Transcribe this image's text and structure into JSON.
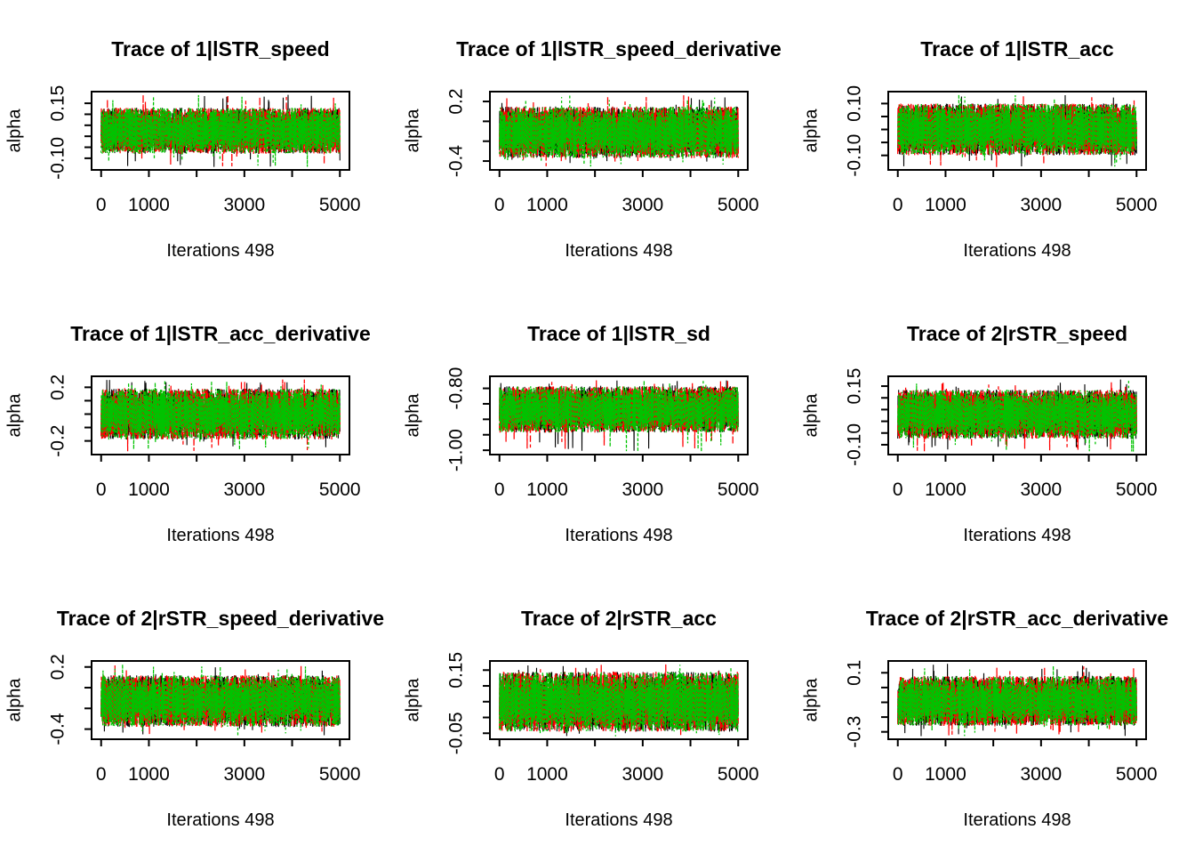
{
  "figure": {
    "background": "#ffffff",
    "foreground": "#000000",
    "grid_rows": 3,
    "grid_cols": 3,
    "xlabel": "Iterations 498",
    "ylabel": "alpha",
    "legend": "none",
    "chain_colors": {
      "chain-1": "#000000",
      "chain-2": "#ff0000",
      "chain-3": "#00c300"
    },
    "chain_linetypes": {
      "chain-1": "solid",
      "chain-2": "dashed",
      "chain-3": "dotted"
    }
  },
  "chart_data": [
    {
      "type": "line",
      "title": "Trace of 1|lSTR_speed",
      "xlabel": "Iterations 498",
      "ylabel": "alpha",
      "x_range": [
        0,
        5000
      ],
      "x_ticks": [
        0,
        1000,
        2000,
        3000,
        4000,
        5000
      ],
      "x_tick_labels": [
        "0",
        "1000",
        "",
        "3000",
        "",
        "5000"
      ],
      "ylim": [
        -0.153,
        0.203
      ],
      "y_ticks": [
        -0.1,
        -0.05,
        0.0,
        0.05,
        0.1,
        0.15
      ],
      "y_tick_labels": [
        "-0.10",
        "",
        "",
        "",
        "",
        "0.15"
      ],
      "grid": false,
      "series": [
        {
          "name": "chain-1",
          "color": "#000000",
          "linetype": "solid",
          "center": 0.025,
          "spread": 0.105,
          "min": -0.14,
          "max": 0.19
        },
        {
          "name": "chain-2",
          "color": "#ff0000",
          "linetype": "dashed",
          "center": 0.025,
          "spread": 0.105,
          "min": -0.14,
          "max": 0.19
        },
        {
          "name": "chain-3",
          "color": "#00c300",
          "linetype": "dotted",
          "center": 0.025,
          "spread": 0.105,
          "min": -0.14,
          "max": 0.19
        }
      ]
    },
    {
      "type": "line",
      "title": "Trace of 1|lSTR_speed_derivative",
      "xlabel": "Iterations 498",
      "ylabel": "alpha",
      "x_range": [
        0,
        5000
      ],
      "x_ticks": [
        0,
        1000,
        2000,
        3000,
        4000,
        5000
      ],
      "x_tick_labels": [
        "0",
        "1000",
        "",
        "3000",
        "",
        "5000"
      ],
      "ylim": [
        -0.489,
        0.299
      ],
      "y_ticks": [
        -0.4,
        -0.2,
        0.0,
        0.2
      ],
      "y_tick_labels": [
        "-0.4",
        "",
        "",
        "0.2"
      ],
      "grid": false,
      "series": [
        {
          "name": "chain-1",
          "color": "#000000",
          "linetype": "solid",
          "center": -0.11,
          "spread": 0.26,
          "min": -0.46,
          "max": 0.27
        },
        {
          "name": "chain-2",
          "color": "#ff0000",
          "linetype": "dashed",
          "center": -0.11,
          "spread": 0.26,
          "min": -0.46,
          "max": 0.27
        },
        {
          "name": "chain-3",
          "color": "#00c300",
          "linetype": "dotted",
          "center": -0.11,
          "spread": 0.26,
          "min": -0.46,
          "max": 0.27
        }
      ]
    },
    {
      "type": "line",
      "title": "Trace of 1|lSTR_acc",
      "xlabel": "Iterations 498",
      "ylabel": "alpha",
      "x_range": [
        0,
        5000
      ],
      "x_ticks": [
        0,
        1000,
        2000,
        3000,
        4000,
        5000
      ],
      "x_tick_labels": [
        "0",
        "1000",
        "",
        "3000",
        "",
        "5000"
      ],
      "ylim": [
        -0.156,
        0.146
      ],
      "y_ticks": [
        -0.1,
        -0.05,
        0.0,
        0.05,
        0.1
      ],
      "y_tick_labels": [
        "-0.10",
        "",
        "",
        "",
        "0.10"
      ],
      "grid": false,
      "series": [
        {
          "name": "chain-1",
          "color": "#000000",
          "linetype": "solid",
          "center": 0.0,
          "spread": 0.1,
          "min": -0.145,
          "max": 0.135
        },
        {
          "name": "chain-2",
          "color": "#ff0000",
          "linetype": "dashed",
          "center": 0.0,
          "spread": 0.1,
          "min": -0.145,
          "max": 0.135
        },
        {
          "name": "chain-3",
          "color": "#00c300",
          "linetype": "dotted",
          "center": 0.0,
          "spread": 0.1,
          "min": -0.145,
          "max": 0.135
        }
      ]
    },
    {
      "type": "line",
      "title": "Trace of 1|lSTR_acc_derivative",
      "xlabel": "Iterations 498",
      "ylabel": "alpha",
      "x_range": [
        0,
        5000
      ],
      "x_ticks": [
        0,
        1000,
        2000,
        3000,
        4000,
        5000
      ],
      "x_tick_labels": [
        "0",
        "1000",
        "",
        "3000",
        "",
        "5000"
      ],
      "ylim": [
        -0.302,
        0.282
      ],
      "y_ticks": [
        -0.2,
        -0.1,
        0.0,
        0.1,
        0.2
      ],
      "y_tick_labels": [
        "-0.2",
        "",
        "",
        "",
        "0.2"
      ],
      "grid": false,
      "series": [
        {
          "name": "chain-1",
          "color": "#000000",
          "linetype": "solid",
          "center": 0.0,
          "spread": 0.19,
          "min": -0.28,
          "max": 0.26
        },
        {
          "name": "chain-2",
          "color": "#ff0000",
          "linetype": "dashed",
          "center": 0.0,
          "spread": 0.19,
          "min": -0.28,
          "max": 0.26
        },
        {
          "name": "chain-3",
          "color": "#00c300",
          "linetype": "dotted",
          "center": 0.0,
          "spread": 0.19,
          "min": -0.28,
          "max": 0.26
        }
      ]
    },
    {
      "type": "line",
      "title": "Trace of 1|lSTR_sd",
      "xlabel": "Iterations 498",
      "ylabel": "alpha",
      "x_range": [
        0,
        5000
      ],
      "x_ticks": [
        0,
        1000,
        2000,
        3000,
        4000,
        5000
      ],
      "x_tick_labels": [
        "0",
        "1000",
        "",
        "3000",
        "",
        "5000"
      ],
      "ylim": [
        -1.014,
        -0.761
      ],
      "y_ticks": [
        -1.0,
        -0.95,
        -0.9,
        -0.85,
        -0.8
      ],
      "y_tick_labels": [
        "-1.00",
        "",
        "",
        "",
        "-0.80"
      ],
      "grid": false,
      "series": [
        {
          "name": "chain-1",
          "color": "#000000",
          "linetype": "solid",
          "center": -0.868,
          "spread": 0.075,
          "min": -1.005,
          "max": -0.77
        },
        {
          "name": "chain-2",
          "color": "#ff0000",
          "linetype": "dashed",
          "center": -0.868,
          "spread": 0.075,
          "min": -1.005,
          "max": -0.77
        },
        {
          "name": "chain-3",
          "color": "#00c300",
          "linetype": "dotted",
          "center": -0.868,
          "spread": 0.075,
          "min": -1.005,
          "max": -0.77
        }
      ]
    },
    {
      "type": "line",
      "title": "Trace of 2|rSTR_speed",
      "xlabel": "Iterations 498",
      "ylabel": "alpha",
      "x_range": [
        0,
        5000
      ],
      "x_ticks": [
        0,
        1000,
        2000,
        3000,
        4000,
        5000
      ],
      "x_tick_labels": [
        "0",
        "1000",
        "",
        "3000",
        "",
        "5000"
      ],
      "ylim": [
        -0.142,
        0.192
      ],
      "y_ticks": [
        -0.1,
        -0.05,
        0.0,
        0.05,
        0.1,
        0.15
      ],
      "y_tick_labels": [
        "-0.10",
        "",
        "",
        "",
        "",
        "0.15"
      ],
      "grid": false,
      "series": [
        {
          "name": "chain-1",
          "color": "#000000",
          "linetype": "solid",
          "center": 0.03,
          "spread": 0.105,
          "min": -0.13,
          "max": 0.18
        },
        {
          "name": "chain-2",
          "color": "#ff0000",
          "linetype": "dashed",
          "center": 0.03,
          "spread": 0.105,
          "min": -0.13,
          "max": 0.18
        },
        {
          "name": "chain-3",
          "color": "#00c300",
          "linetype": "dotted",
          "center": 0.03,
          "spread": 0.105,
          "min": -0.13,
          "max": 0.18
        }
      ]
    },
    {
      "type": "line",
      "title": "Trace of 2|rSTR_speed_derivative",
      "xlabel": "Iterations 498",
      "ylabel": "alpha",
      "x_range": [
        0,
        5000
      ],
      "x_ticks": [
        0,
        1000,
        2000,
        3000,
        4000,
        5000
      ],
      "x_tick_labels": [
        "0",
        "1000",
        "",
        "3000",
        "",
        "5000"
      ],
      "ylim": [
        -0.498,
        0.258
      ],
      "y_ticks": [
        -0.4,
        -0.2,
        0.0,
        0.2
      ],
      "y_tick_labels": [
        "-0.4",
        "",
        "",
        "0.2"
      ],
      "grid": false,
      "series": [
        {
          "name": "chain-1",
          "color": "#000000",
          "linetype": "solid",
          "center": -0.13,
          "spread": 0.25,
          "min": -0.47,
          "max": 0.23
        },
        {
          "name": "chain-2",
          "color": "#ff0000",
          "linetype": "dashed",
          "center": -0.13,
          "spread": 0.25,
          "min": -0.47,
          "max": 0.23
        },
        {
          "name": "chain-3",
          "color": "#00c300",
          "linetype": "dotted",
          "center": -0.13,
          "spread": 0.25,
          "min": -0.47,
          "max": 0.23
        }
      ]
    },
    {
      "type": "line",
      "title": "Trace of 2|rSTR_acc",
      "xlabel": "Iterations 498",
      "ylabel": "alpha",
      "x_range": [
        0,
        5000
      ],
      "x_ticks": [
        0,
        1000,
        2000,
        3000,
        4000,
        5000
      ],
      "x_tick_labels": [
        "0",
        "1000",
        "",
        "3000",
        "",
        "5000"
      ],
      "ylim": [
        -0.069,
        0.179
      ],
      "y_ticks": [
        -0.05,
        0.0,
        0.05,
        0.1,
        0.15
      ],
      "y_tick_labels": [
        "-0.05",
        "",
        "",
        "",
        "0.15"
      ],
      "grid": false,
      "series": [
        {
          "name": "chain-1",
          "color": "#000000",
          "linetype": "solid",
          "center": 0.05,
          "spread": 0.095,
          "min": -0.06,
          "max": 0.17
        },
        {
          "name": "chain-2",
          "color": "#ff0000",
          "linetype": "dashed",
          "center": 0.05,
          "spread": 0.095,
          "min": -0.06,
          "max": 0.17
        },
        {
          "name": "chain-3",
          "color": "#00c300",
          "linetype": "dotted",
          "center": 0.05,
          "spread": 0.095,
          "min": -0.06,
          "max": 0.17
        }
      ]
    },
    {
      "type": "line",
      "title": "Trace of 2|rSTR_acc_derivative",
      "xlabel": "Iterations 498",
      "ylabel": "alpha",
      "x_range": [
        0,
        5000
      ],
      "x_ticks": [
        0,
        1000,
        2000,
        3000,
        4000,
        5000
      ],
      "x_tick_labels": [
        "0",
        "1000",
        "",
        "3000",
        "",
        "5000"
      ],
      "ylim": [
        -0.35,
        0.18
      ],
      "y_ticks": [
        -0.3,
        -0.2,
        -0.1,
        0.0,
        0.1
      ],
      "y_tick_labels": [
        "-0.3",
        "",
        "",
        "",
        "0.1"
      ],
      "grid": false,
      "series": [
        {
          "name": "chain-1",
          "color": "#000000",
          "linetype": "solid",
          "center": -0.09,
          "spread": 0.17,
          "min": -0.33,
          "max": 0.16
        },
        {
          "name": "chain-2",
          "color": "#ff0000",
          "linetype": "dashed",
          "center": -0.09,
          "spread": 0.17,
          "min": -0.33,
          "max": 0.16
        },
        {
          "name": "chain-3",
          "color": "#00c300",
          "linetype": "dotted",
          "center": -0.09,
          "spread": 0.17,
          "min": -0.33,
          "max": 0.16
        }
      ]
    }
  ]
}
